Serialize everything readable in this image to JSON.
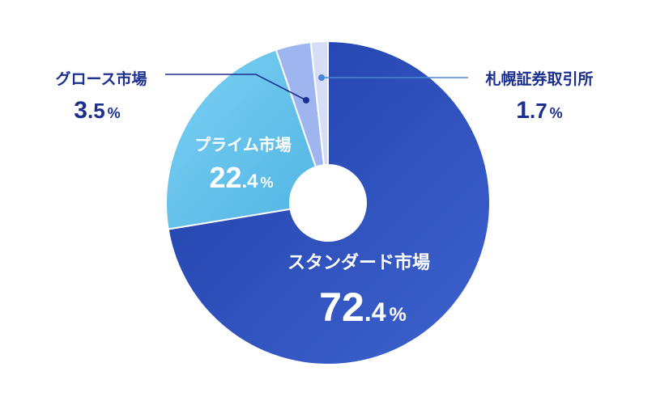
{
  "chart_data": {
    "type": "pie",
    "donut": true,
    "categories": [
      "スタンダード市場",
      "プライム市場",
      "グロース市場",
      "札幌証券取引所"
    ],
    "values": [
      72.4,
      22.4,
      3.5,
      1.7
    ],
    "unit": "%",
    "labels": [
      {
        "name": "スタンダード市場",
        "int": "72",
        "dec": ".4",
        "unit": "%"
      },
      {
        "name": "プライム市場",
        "int": "22",
        "dec": ".4",
        "unit": "%"
      },
      {
        "name": "グロース市場",
        "int": "3",
        "dec": ".5",
        "unit": "%"
      },
      {
        "name": "札幌証券取引所",
        "int": "1",
        "dec": ".7",
        "unit": "%"
      }
    ],
    "colors": [
      "#2f55c2",
      "#6cc3ea",
      "#9fb5f0",
      "#d6def7"
    ],
    "label_color_inside": "#ffffff",
    "label_color_outside": "#1b2f8f"
  }
}
